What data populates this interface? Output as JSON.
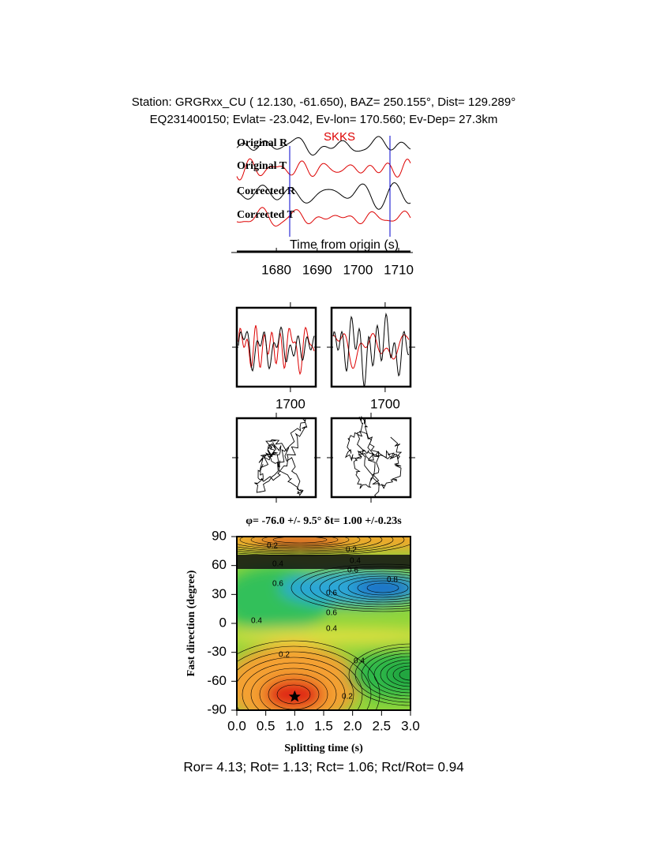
{
  "header": {
    "line1": "Station: GRGRxx_CU (  12.130,  -61.650), BAZ=  250.155°, Dist=  129.289°",
    "line2": "EQ231400150; Evlat= -23.042, Ev-lon= 170.560; Ev-Dep= 27.3km"
  },
  "traces": {
    "labels": [
      "Original R",
      "Original T",
      "Corrected R",
      "Corrected T"
    ],
    "phase": "SKKS",
    "xlabel": "Time from origin (s)",
    "xlim": [
      1670.3,
      1712.9
    ],
    "xticks": [
      1680,
      1690,
      1700,
      1710
    ]
  },
  "waveform_panels": [
    {
      "xlim": [
        1683.3,
        1707.9
      ],
      "xticks": [
        1700
      ]
    },
    {
      "xlim": [
        1683.3,
        1707.9
      ],
      "xticks": [
        1700
      ]
    }
  ],
  "contour": {
    "title": "φ= -76.0 +/- 9.5° δt= 1.00 +/-0.23s",
    "xlabel": "Splitting time (s)",
    "ylabel": "Fast direction (degree)",
    "xlim": [
      0,
      3
    ],
    "ylim": [
      -90,
      90
    ],
    "xticks": [
      {
        "value": 0,
        "label": "0.0"
      },
      0.5,
      {
        "value": 1,
        "label": "1.0"
      },
      1.5,
      {
        "value": 2,
        "label": "2.0"
      },
      2.5,
      {
        "value": 3,
        "label": "3.0"
      }
    ],
    "yticks": [
      90,
      60,
      30,
      0,
      -30,
      -60,
      -90
    ],
    "labels": [
      "0.2",
      "0.2",
      "0.4",
      "0.4",
      "0.6",
      "0.8",
      "0.6",
      "0.6",
      "0.6",
      "0.4",
      "0.2",
      "0.4",
      "0.2",
      "0.4"
    ],
    "best_fit": {
      "dt": 1.0,
      "phi": -76.0
    }
  },
  "footer": "Ror= 4.13; Rot= 1.13; Rct= 1.06; Rct/Rot= 0.94"
}
